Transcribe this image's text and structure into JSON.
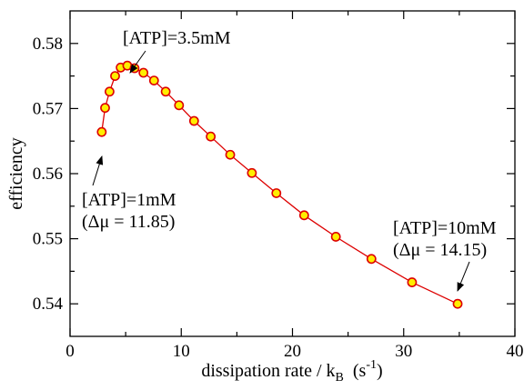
{
  "chart_data": {
    "type": "line",
    "xlabel": "dissipation rate / k",
    "xlabel_sub": "B",
    "xlabel_unit": "(s",
    "xlabel_exp": "-1",
    "xlabel_close": ")",
    "ylabel": "efficiency",
    "xlim": [
      0,
      40
    ],
    "ylim": [
      0.535,
      0.585
    ],
    "x_ticks": [
      0,
      10,
      20,
      30,
      40
    ],
    "x_tick_labels": [
      "0",
      "10",
      "20",
      "30",
      "40"
    ],
    "y_ticks": [
      0.54,
      0.55,
      0.56,
      0.57,
      0.58
    ],
    "y_tick_labels": [
      "0.54",
      "0.55",
      "0.56",
      "0.57",
      "0.58"
    ],
    "grid": false,
    "legend": "none",
    "line_color": "#dd0000",
    "marker_fill": "#ffee00",
    "marker_edge": "#dd0000",
    "series": [
      {
        "x": [
          2.85,
          3.15,
          3.55,
          4.05,
          4.55,
          5.15,
          5.8,
          6.6,
          7.55,
          8.6,
          9.8,
          11.15,
          12.65,
          14.4,
          16.35,
          18.55,
          21.05,
          23.9,
          27.1,
          30.75,
          34.85
        ],
        "y": [
          0.5664,
          0.5701,
          0.5726,
          0.575,
          0.5763,
          0.5766,
          0.5762,
          0.5755,
          0.5743,
          0.5726,
          0.5705,
          0.5681,
          0.5657,
          0.5629,
          0.5601,
          0.557,
          0.5536,
          0.5503,
          0.5469,
          0.5433,
          0.54
        ]
      }
    ],
    "annotations": [
      {
        "id": "atp-3-5",
        "lines": [
          "[ATP]=3.5mM"
        ],
        "point_index": 5
      },
      {
        "id": "atp-1",
        "lines": [
          "[ATP]=1mM",
          "(Δμ = 11.85)"
        ],
        "point_index": 0
      },
      {
        "id": "atp-10",
        "lines": [
          "[ATP]=10mM",
          "(Δμ = 14.15)"
        ],
        "point_index": 20
      }
    ]
  }
}
